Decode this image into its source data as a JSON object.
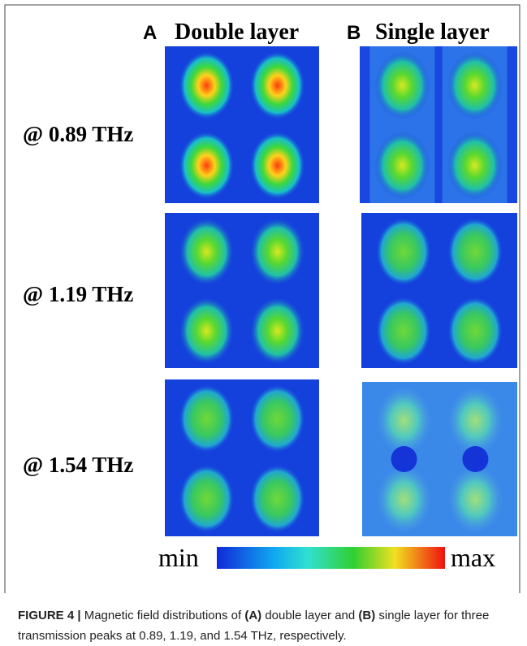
{
  "figure": {
    "columns": [
      {
        "letter": "A",
        "title": "Double layer"
      },
      {
        "letter": "B",
        "title": "Single layer"
      }
    ],
    "rows": [
      "@ 0.89 THz",
      "@ 1.19 THz",
      "@ 1.54 THz"
    ],
    "colorbar": {
      "min": "min",
      "max": "max"
    }
  },
  "caption": {
    "label": "FIGURE 4 |",
    "parts": [
      " Magnetic field distributions of ",
      "(A)",
      " double layer and ",
      "(B)",
      " single layer for three transmission peaks at 0.89, 1.19, and 1.54 THz, respectively."
    ]
  }
}
